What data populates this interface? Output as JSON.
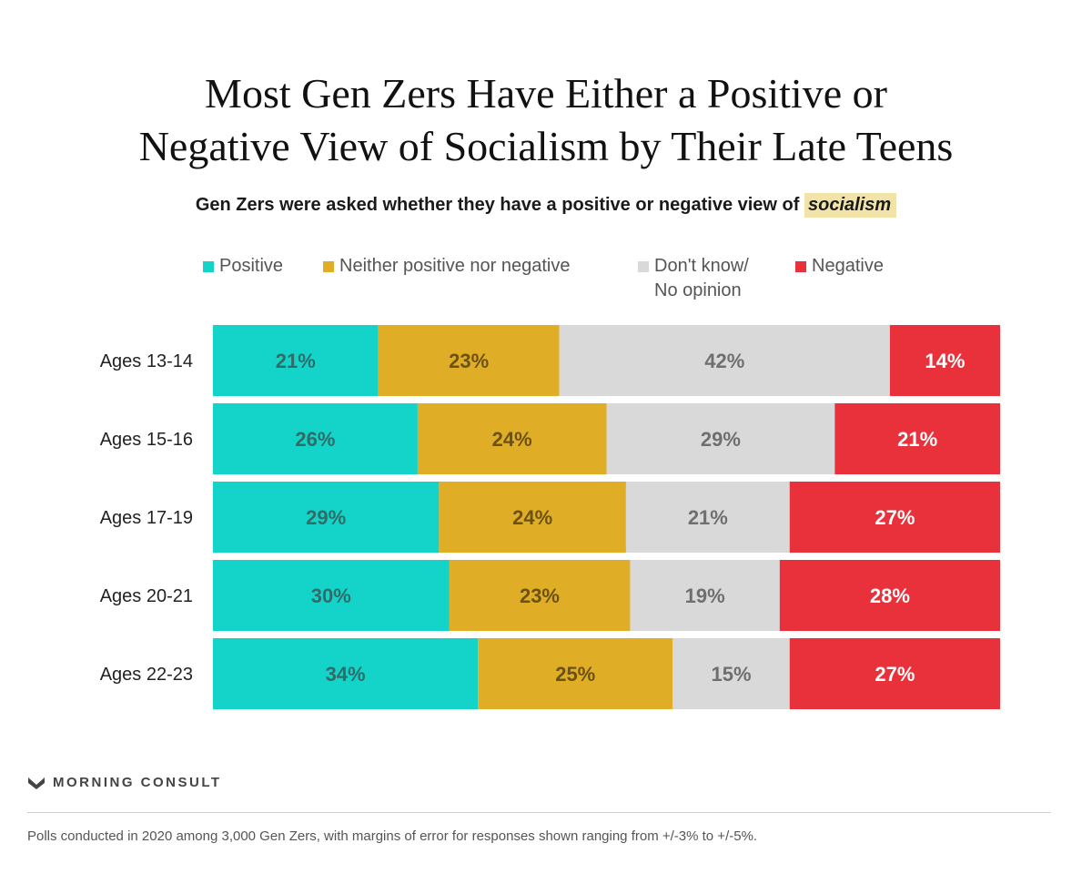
{
  "header": {
    "title_line1": "Most Gen Zers Have Either a Positive or",
    "title_line2": "Negative View of Socialism by Their Late Teens",
    "subtitle_prefix": "Gen Zers were asked whether they have a positive or negative view of",
    "subtitle_highlight": "socialism"
  },
  "legend": {
    "positive": "Positive",
    "neither": "Neither positive nor negative",
    "dont_know_line1": "Don't know/",
    "dont_know_line2": "No opinion",
    "negative": "Negative"
  },
  "colors": {
    "positive": "#14d3c9",
    "neither": "#e0ae26",
    "dont_know": "#d9d9d9",
    "negative": "#e8313a",
    "label_positive": "#2f6d69",
    "label_neither": "#6b5213",
    "label_dont_know": "#6f6f6f",
    "label_negative": "#ffffff"
  },
  "chart_data": {
    "type": "bar",
    "orientation": "horizontal",
    "stacked": true,
    "percent_stacked": true,
    "categories": [
      "Ages 13-14",
      "Ages 15-16",
      "Ages 17-19",
      "Ages 20-21",
      "Ages 22-23"
    ],
    "series": [
      {
        "name": "Positive",
        "values": [
          21,
          26,
          29,
          30,
          34
        ],
        "labels": [
          "21%",
          "26%",
          "29%",
          "30%",
          "34%"
        ]
      },
      {
        "name": "Neither positive nor negative",
        "values": [
          23,
          24,
          24,
          23,
          25
        ],
        "labels": [
          "23%",
          "24%",
          "24%",
          "23%",
          "25%"
        ]
      },
      {
        "name": "Don't know/ No opinion",
        "values": [
          42,
          29,
          21,
          19,
          15
        ],
        "labels": [
          "42%",
          "29%",
          "21%",
          "19%",
          "15%"
        ]
      },
      {
        "name": "Negative",
        "values": [
          14,
          21,
          27,
          28,
          27
        ],
        "labels": [
          "14%",
          "21%",
          "27%",
          "28%",
          "27%"
        ]
      }
    ],
    "title": "Most Gen Zers Have Either a Positive or Negative View of Socialism by Their Late Teens",
    "xlabel": "",
    "ylabel": "",
    "xlim": [
      0,
      100
    ],
    "grid": false,
    "legend": "top"
  },
  "footer": {
    "brand": "MORNING CONSULT",
    "note": "Polls conducted in 2020 among 3,000 Gen Zers, with margins of error for responses shown ranging from +/-3% to +/-5%."
  }
}
